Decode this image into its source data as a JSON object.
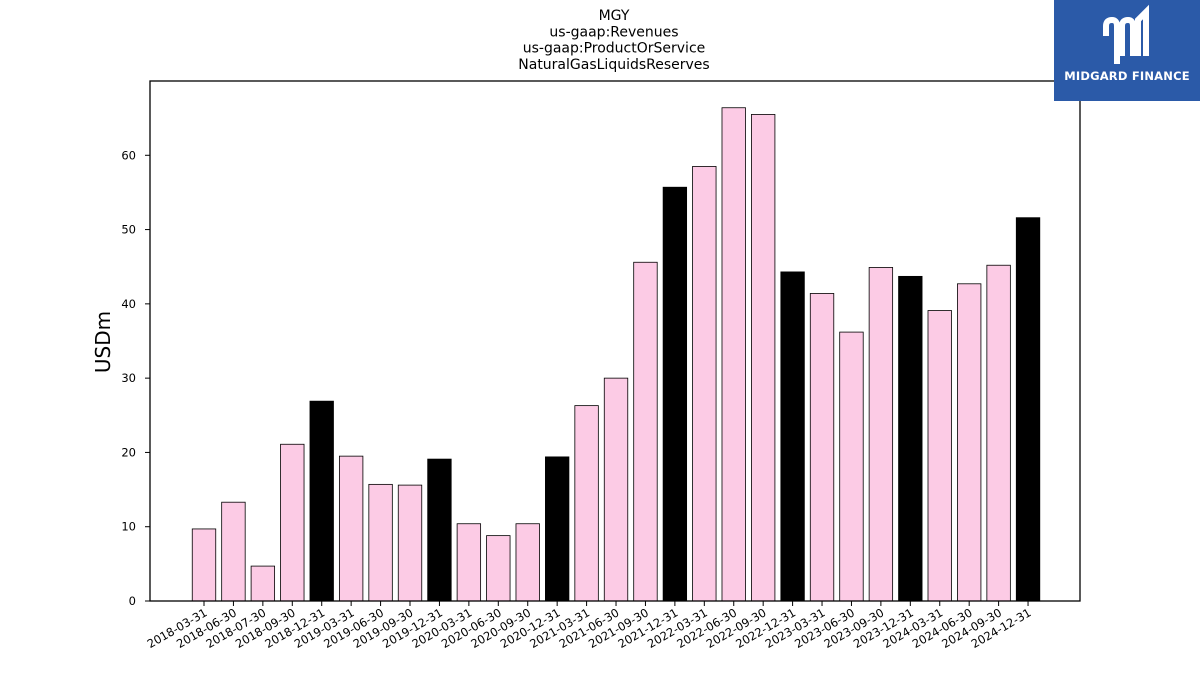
{
  "brand": {
    "name": "MIDGARD FINANCE",
    "logo_color": "#2b5aa8"
  },
  "chart_data": {
    "type": "bar",
    "title_lines": [
      "MGY",
      "us-gaap:Revenues",
      "us-gaap:ProductOrService",
      "NaturalGasLiquidsReserves"
    ],
    "xlabel": "",
    "ylabel": "USDm",
    "ylim": [
      0,
      70
    ],
    "yticks": [
      0,
      10,
      20,
      30,
      40,
      50,
      60
    ],
    "grid": false,
    "colors": {
      "quarter": "#fccbe5",
      "year_end": "#000000",
      "edge": "#000000"
    },
    "categories": [
      "2018-03-31",
      "2018-06-30",
      "2018-07-30",
      "2018-09-30",
      "2018-12-31",
      "2019-03-31",
      "2019-06-30",
      "2019-09-30",
      "2019-12-31",
      "2020-03-31",
      "2020-06-30",
      "2020-09-30",
      "2020-12-31",
      "2021-03-31",
      "2021-06-30",
      "2021-09-30",
      "2021-12-31",
      "2022-03-31",
      "2022-06-30",
      "2022-09-30",
      "2022-12-31",
      "2023-03-31",
      "2023-06-30",
      "2023-09-30",
      "2023-12-31",
      "2024-03-31",
      "2024-06-30",
      "2024-09-30",
      "2024-12-31"
    ],
    "values": [
      9.7,
      13.3,
      4.7,
      21.1,
      26.9,
      19.5,
      15.7,
      15.6,
      19.1,
      10.4,
      8.8,
      10.4,
      19.4,
      26.3,
      30.0,
      45.6,
      55.7,
      58.5,
      66.4,
      65.5,
      44.3,
      41.4,
      36.2,
      44.9,
      43.7,
      39.1,
      42.7,
      45.2,
      51.6
    ],
    "highlight": [
      false,
      false,
      false,
      false,
      true,
      false,
      false,
      false,
      true,
      false,
      false,
      false,
      true,
      false,
      false,
      false,
      true,
      false,
      false,
      false,
      true,
      false,
      false,
      false,
      true,
      false,
      false,
      false,
      true
    ]
  }
}
